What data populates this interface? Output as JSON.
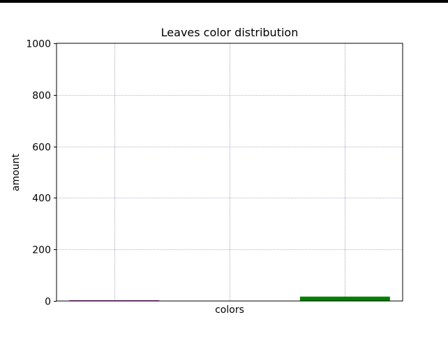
{
  "chart_data": {
    "type": "bar",
    "title": "Leaves color distribution",
    "xlabel": "colors",
    "ylabel": "amount",
    "ylim": [
      0,
      1000
    ],
    "yticks": [
      0,
      200,
      400,
      600,
      800,
      1000
    ],
    "grid": true,
    "series": [
      {
        "values": [
          1,
          0,
          17
        ],
        "colors": [
          "#800080",
          "#ff0000",
          "#008000"
        ]
      }
    ]
  }
}
